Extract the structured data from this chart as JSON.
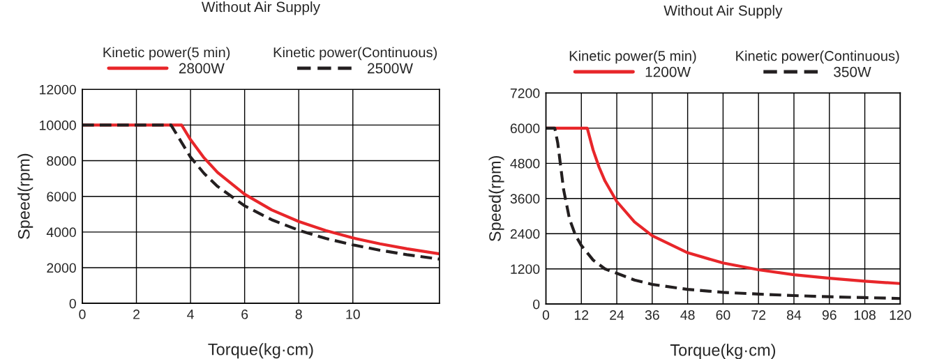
{
  "chart_data": [
    {
      "type": "line",
      "title": "Without Air Supply",
      "xlabel": "Torque(kg·cm)",
      "ylabel": "Speed(rpm)",
      "annotations": [
        "Kinetic power(5 min)",
        "Kinetic power(Continuous)"
      ],
      "xlim": [
        0,
        13.2
      ],
      "xticks": [
        0,
        2,
        4,
        6,
        8,
        10
      ],
      "ylim": [
        0,
        12000
      ],
      "yticks": [
        0,
        2000,
        4000,
        6000,
        8000,
        10000,
        12000
      ],
      "grid": true,
      "legend": "top",
      "marker": "none",
      "series": [
        {
          "name": "2800W",
          "color": "#e8262a",
          "line_style": "solid",
          "x": [
            0,
            3.67,
            4,
            4.5,
            5,
            6,
            7,
            8,
            9,
            10,
            11,
            12,
            13.2
          ],
          "values": [
            10000,
            10000,
            9180,
            8160,
            7340,
            6120,
            5240,
            4590,
            4080,
            3670,
            3340,
            3060,
            2780
          ]
        },
        {
          "name": "2500W",
          "color": "#231f20",
          "line_style": "dashed",
          "x": [
            0,
            3.28,
            4,
            4.5,
            5,
            6,
            7,
            8,
            9,
            10,
            11,
            12,
            13.2
          ],
          "values": [
            10000,
            10000,
            8200,
            7290,
            6560,
            5470,
            4690,
            4100,
            3640,
            3280,
            2980,
            2730,
            2480
          ]
        }
      ]
    },
    {
      "type": "line",
      "title": "Without Air Supply",
      "xlabel": "Torque(kg·cm)",
      "ylabel": "Speed(rpm)",
      "annotations": [
        "Kinetic power(5 min)",
        "Kinetic power(Continuous)"
      ],
      "xlim": [
        0,
        120
      ],
      "xticks": [
        0,
        12,
        24,
        36,
        48,
        60,
        72,
        84,
        96,
        108,
        120
      ],
      "ylim": [
        0,
        7200
      ],
      "yticks": [
        0,
        1200,
        2400,
        3600,
        4800,
        6000,
        7200
      ],
      "grid": true,
      "legend": "top",
      "marker": "none",
      "series": [
        {
          "name": "1200W",
          "color": "#e8262a",
          "line_style": "solid",
          "x": [
            0,
            14,
            16,
            18,
            20,
            24,
            30,
            36,
            48,
            60,
            72,
            84,
            96,
            108,
            120
          ],
          "values": [
            6000,
            6000,
            5250,
            4670,
            4200,
            3500,
            2800,
            2330,
            1750,
            1400,
            1170,
            1000,
            880,
            780,
            700
          ]
        },
        {
          "name": "350W",
          "color": "#231f20",
          "line_style": "dashed",
          "x": [
            0,
            3,
            4,
            5,
            6,
            8,
            10,
            12,
            16,
            20,
            24,
            30,
            36,
            48,
            60,
            72,
            84,
            96,
            108,
            120
          ],
          "values": [
            6000,
            6000,
            5500,
            4700,
            3900,
            2900,
            2350,
            2000,
            1500,
            1200,
            1050,
            820,
            670,
            500,
            400,
            340,
            290,
            250,
            220,
            190
          ]
        }
      ]
    }
  ]
}
